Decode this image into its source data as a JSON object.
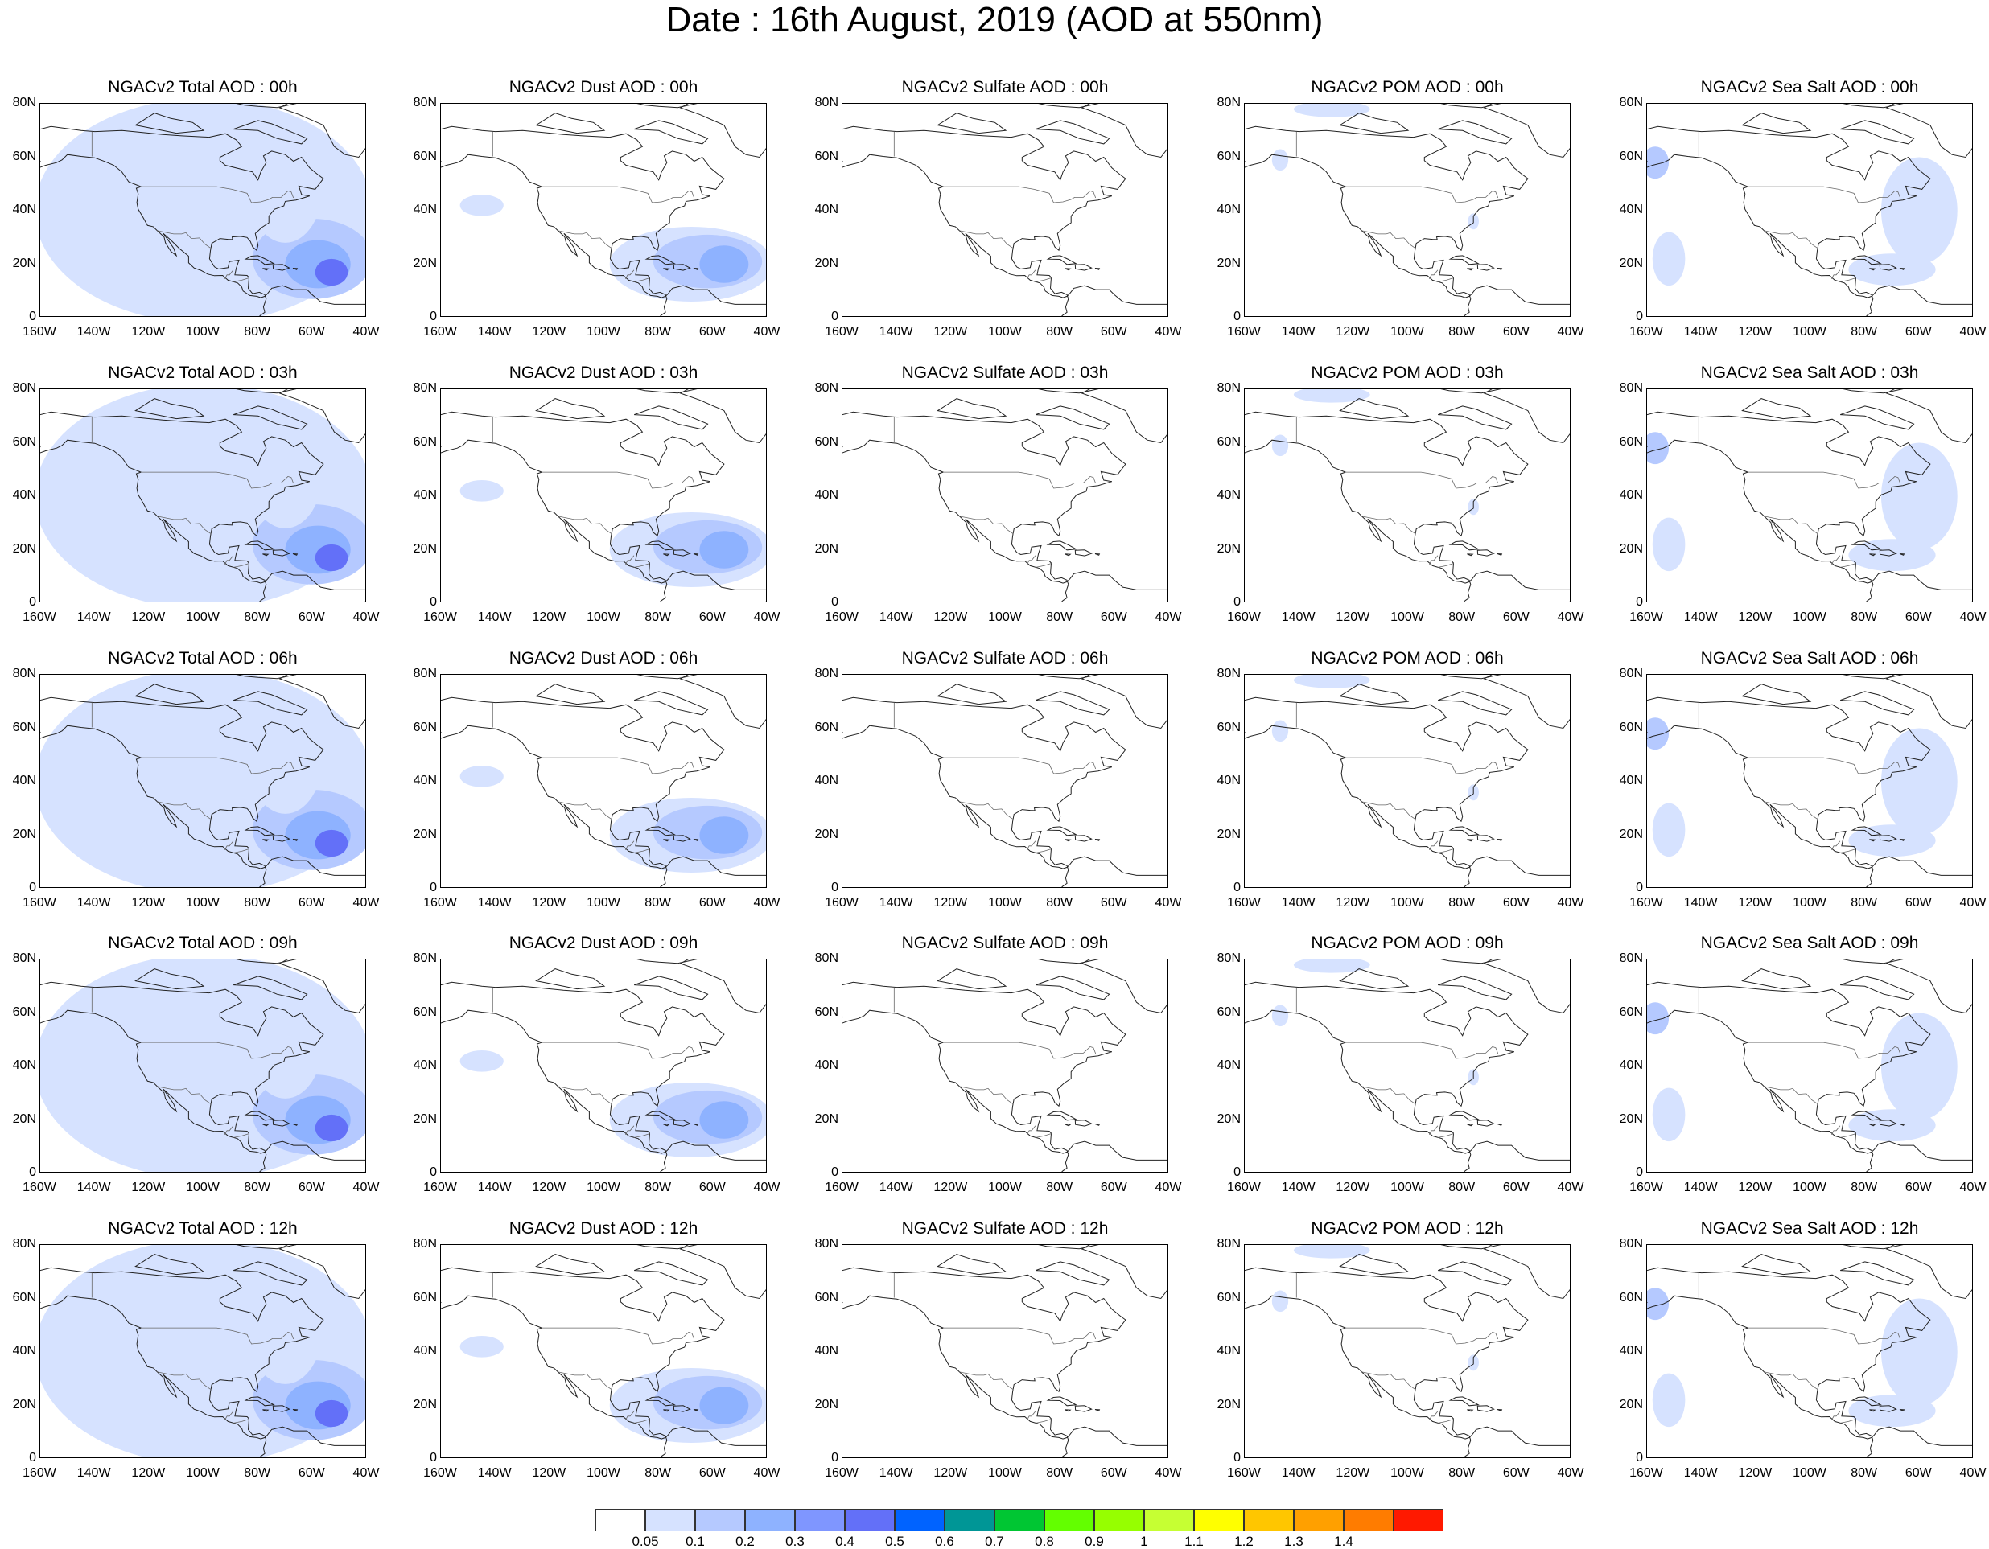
{
  "title": "Date : 16th August, 2019 (AOD at 550nm)",
  "lat_ticks": [
    "80N",
    "60N",
    "40N",
    "20N",
    "0"
  ],
  "lon_ticks": [
    "160W",
    "140W",
    "120W",
    "100W",
    "80W",
    "60W",
    "40W"
  ],
  "map_extent": {
    "lon": [
      -160,
      -40
    ],
    "lat": [
      0,
      80
    ]
  },
  "panels": [
    [
      "NGACv2 Total AOD : 00h",
      "NGACv2 Dust AOD : 00h",
      "NGACv2 Sulfate AOD : 00h",
      "NGACv2 POM AOD : 00h",
      "NGACv2 Sea Salt AOD : 00h"
    ],
    [
      "NGACv2 Total AOD : 03h",
      "NGACv2 Dust AOD : 03h",
      "NGACv2 Sulfate AOD : 03h",
      "NGACv2 POM AOD : 03h",
      "NGACv2 Sea Salt AOD : 03h"
    ],
    [
      "NGACv2 Total AOD : 06h",
      "NGACv2 Dust AOD : 06h",
      "NGACv2 Sulfate AOD : 06h",
      "NGACv2 POM AOD : 06h",
      "NGACv2 Sea Salt AOD : 06h"
    ],
    [
      "NGACv2 Total AOD : 09h",
      "NGACv2 Dust AOD : 09h",
      "NGACv2 Sulfate AOD : 09h",
      "NGACv2 POM AOD : 09h",
      "NGACv2 Sea Salt  AOD : 09h"
    ],
    [
      "NGACv2 Total AOD  : 12h",
      "NGACv2 Dust AOD : 12h",
      "NGACv2 Sulfate AOD : 12h",
      "NGACv2 POM  AOD : 12h",
      "NGACv2 Sea Salt  AOD : 12h"
    ]
  ],
  "colorbar": {
    "labels": [
      "0.05",
      "0.1",
      "0.2",
      "0.3",
      "0.4",
      "0.5",
      "0.6",
      "0.7",
      "0.8",
      "0.9",
      "1",
      "1.1",
      "1.2",
      "1.3",
      "1.4"
    ],
    "colors": [
      "#ffffff",
      "#d6e2ff",
      "#b5c9ff",
      "#8eb2ff",
      "#7f96ff",
      "#6370f8",
      "#0063ff",
      "#009696",
      "#00c633",
      "#63ff00",
      "#96ff00",
      "#c6ff33",
      "#ffff00",
      "#ffc600",
      "#ffa000",
      "#ff7c00",
      "#ff1900"
    ]
  },
  "aod_fields": {
    "total": [
      {
        "lon": -100,
        "lat": 40,
        "rx": 62,
        "ry": 42,
        "c": "#d6e2ff"
      },
      {
        "lon": -60,
        "lat": 22,
        "rx": 22,
        "ry": 15,
        "c": "#b5c9ff"
      },
      {
        "lon": -58,
        "lat": 20,
        "rx": 12,
        "ry": 9,
        "c": "#8eb2ff"
      },
      {
        "lon": -53,
        "lat": 17,
        "rx": 6,
        "ry": 5,
        "c": "#6370f8"
      },
      {
        "lon": -70,
        "lat": 50,
        "rx": 14,
        "ry": 22,
        "c": "#d6e2ff"
      }
    ],
    "dust": [
      {
        "lon": -68,
        "lat": 20,
        "rx": 30,
        "ry": 14,
        "c": "#d6e2ff"
      },
      {
        "lon": -62,
        "lat": 21,
        "rx": 20,
        "ry": 10,
        "c": "#b5c9ff"
      },
      {
        "lon": -56,
        "lat": 20,
        "rx": 9,
        "ry": 7,
        "c": "#8eb2ff"
      },
      {
        "lon": -145,
        "lat": 42,
        "rx": 8,
        "ry": 4,
        "c": "#d6e2ff"
      }
    ],
    "sulfate": [],
    "pom": [
      {
        "lon": -128,
        "lat": 78,
        "rx": 14,
        "ry": 3,
        "c": "#d6e2ff"
      },
      {
        "lon": -147,
        "lat": 59,
        "rx": 3,
        "ry": 4,
        "c": "#d6e2ff"
      },
      {
        "lon": -76,
        "lat": 36,
        "rx": 2,
        "ry": 3,
        "c": "#d6e2ff"
      }
    ],
    "seasalt": [
      {
        "lon": -157,
        "lat": 58,
        "rx": 5,
        "ry": 6,
        "c": "#b5c9ff"
      },
      {
        "lon": -60,
        "lat": 40,
        "rx": 14,
        "ry": 20,
        "c": "#d6e2ff"
      },
      {
        "lon": -70,
        "lat": 18,
        "rx": 16,
        "ry": 6,
        "c": "#d6e2ff"
      },
      {
        "lon": -152,
        "lat": 22,
        "rx": 6,
        "ry": 10,
        "c": "#d6e2ff"
      }
    ]
  }
}
